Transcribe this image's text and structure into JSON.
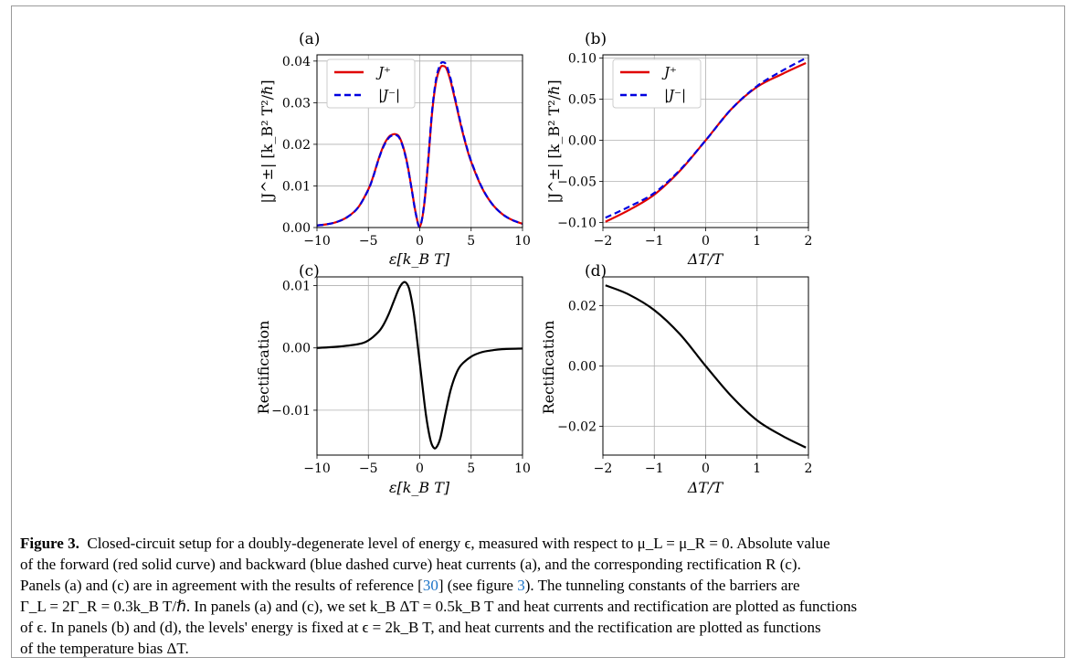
{
  "chart_data": [
    {
      "panel": "(a)",
      "type": "line",
      "xlabel": "ε[k_B T]",
      "ylabel": "|J^±|  [k_B² T²/ℏ]",
      "xlim": [
        -10,
        10
      ],
      "ylim": [
        0,
        0.0415
      ],
      "xticks": [
        -10,
        -5,
        0,
        5,
        10
      ],
      "xtick_labels": [
        "−10",
        "−5",
        "0",
        "5",
        "10"
      ],
      "yticks": [
        0,
        0.01,
        0.02,
        0.03,
        0.04
      ],
      "ytick_labels": [
        "0.00",
        "0.01",
        "0.02",
        "0.03",
        "0.04"
      ],
      "grid": true,
      "legend": "top-left",
      "series": [
        {
          "name": "J⁺",
          "color": "#e00000",
          "style": "solid",
          "x": [
            -10,
            -9,
            -8,
            -7,
            -6,
            -5,
            -4.5,
            -4,
            -3.5,
            -3,
            -2.6,
            -2.3,
            -2,
            -1.6,
            -1.2,
            -0.8,
            -0.4,
            0,
            0.4,
            0.8,
            1.2,
            1.6,
            2,
            2.3,
            2.6,
            3,
            3.5,
            4,
            4.5,
            5,
            6,
            7,
            8,
            9,
            10
          ],
          "y": [
            0.0005,
            0.0008,
            0.0014,
            0.0026,
            0.0048,
            0.0092,
            0.0125,
            0.0165,
            0.0198,
            0.0218,
            0.0224,
            0.0224,
            0.0218,
            0.0193,
            0.0152,
            0.0095,
            0.0036,
            0.0002,
            0.0048,
            0.0152,
            0.0275,
            0.0352,
            0.0384,
            0.0388,
            0.0382,
            0.0352,
            0.03,
            0.0246,
            0.0198,
            0.0158,
            0.0098,
            0.0058,
            0.0033,
            0.0018,
            0.0009
          ]
        },
        {
          "name": "|J⁻|",
          "color": "#0000e0",
          "style": "dashed",
          "x": [
            -10,
            -9,
            -8,
            -7,
            -6,
            -5,
            -4.5,
            -4,
            -3.5,
            -3,
            -2.6,
            -2.3,
            -2,
            -1.6,
            -1.2,
            -0.8,
            -0.4,
            0,
            0.4,
            0.8,
            1.2,
            1.6,
            2,
            2.3,
            2.6,
            3,
            3.5,
            4,
            4.5,
            5,
            6,
            7,
            8,
            9,
            10
          ],
          "y": [
            0.0005,
            0.0008,
            0.0014,
            0.0026,
            0.0048,
            0.0091,
            0.0124,
            0.0164,
            0.0196,
            0.0216,
            0.0222,
            0.0222,
            0.0216,
            0.0191,
            0.015,
            0.0094,
            0.0035,
            0.0002,
            0.005,
            0.0156,
            0.028,
            0.0358,
            0.0392,
            0.0397,
            0.039,
            0.0358,
            0.0304,
            0.0249,
            0.02,
            0.016,
            0.0099,
            0.0058,
            0.0033,
            0.0018,
            0.0009
          ]
        }
      ]
    },
    {
      "panel": "(b)",
      "type": "line",
      "xlabel": "ΔT/T",
      "ylabel": "|J^±|  [k_B² T²/ℏ]",
      "xlim": [
        -2,
        2
      ],
      "ylim": [
        -0.106,
        0.104
      ],
      "xticks": [
        -2,
        -1,
        0,
        1,
        2
      ],
      "xtick_labels": [
        "−2",
        "−1",
        "0",
        "1",
        "2"
      ],
      "yticks": [
        -0.1,
        -0.05,
        0,
        0.05,
        0.1
      ],
      "ytick_labels": [
        "−0.10",
        "−0.05",
        "0.00",
        "0.05",
        "0.10"
      ],
      "grid": true,
      "legend": "top-left",
      "series": [
        {
          "name": "J⁺",
          "color": "#e00000",
          "style": "solid",
          "x": [
            -1.95,
            -1.5,
            -1,
            -0.5,
            0,
            0.5,
            1,
            1.5,
            1.95
          ],
          "y": [
            -0.099,
            -0.085,
            -0.066,
            -0.037,
            0,
            0.038,
            0.065,
            0.081,
            0.094
          ]
        },
        {
          "name": "|J⁻|",
          "color": "#0000e0",
          "style": "dashed",
          "x": [
            -1.95,
            -1.5,
            -1,
            -0.5,
            0,
            0.5,
            1,
            1.5,
            1.95
          ],
          "y": [
            -0.094,
            -0.081,
            -0.064,
            -0.036,
            0,
            0.038,
            0.066,
            0.085,
            0.1
          ]
        }
      ]
    },
    {
      "panel": "(c)",
      "type": "line",
      "xlabel": "ε[k_B T]",
      "ylabel": "Rectification",
      "xlim": [
        -10,
        10
      ],
      "ylim": [
        -0.0172,
        0.0114
      ],
      "xticks": [
        -10,
        -5,
        0,
        5,
        10
      ],
      "xtick_labels": [
        "−10",
        "−5",
        "0",
        "5",
        "10"
      ],
      "yticks": [
        -0.01,
        0,
        0.01
      ],
      "ytick_labels": [
        "−0.01",
        "0.00",
        "0.01"
      ],
      "grid": true,
      "series": [
        {
          "name": "",
          "color": "#000000",
          "style": "solid",
          "x": [
            -10,
            -8,
            -6,
            -5,
            -4,
            -3.5,
            -3,
            -2.5,
            -2,
            -1.6,
            -1.3,
            -1,
            -0.6,
            -0.2,
            0.2,
            0.6,
            1,
            1.3,
            1.6,
            2,
            2.5,
            3,
            3.5,
            4,
            5,
            6,
            7,
            8,
            10
          ],
          "y": [
            0.0,
            0.0002,
            0.0006,
            0.0012,
            0.0026,
            0.0038,
            0.0055,
            0.0076,
            0.0096,
            0.0105,
            0.0104,
            0.0093,
            0.0058,
            0.0005,
            -0.0052,
            -0.0107,
            -0.0145,
            -0.0159,
            -0.016,
            -0.0145,
            -0.0105,
            -0.0068,
            -0.0043,
            -0.0028,
            -0.0014,
            -0.0007,
            -0.0004,
            -0.0002,
            -0.0001
          ]
        }
      ]
    },
    {
      "panel": "(d)",
      "type": "line",
      "xlabel": "ΔT/T",
      "ylabel": "Rectification",
      "xlim": [
        -2,
        2
      ],
      "ylim": [
        -0.0295,
        0.0295
      ],
      "xticks": [
        -2,
        -1,
        0,
        1,
        2
      ],
      "xtick_labels": [
        "−2",
        "−1",
        "0",
        "1",
        "2"
      ],
      "yticks": [
        -0.02,
        0,
        0.02
      ],
      "ytick_labels": [
        "−0.02",
        "0.00",
        "0.02"
      ],
      "grid": true,
      "series": [
        {
          "name": "",
          "color": "#000000",
          "style": "solid",
          "x": [
            -1.95,
            -1.5,
            -1,
            -0.5,
            0,
            0.5,
            1,
            1.5,
            1.95
          ],
          "y": [
            0.0267,
            0.0237,
            0.0185,
            0.0105,
            0.0,
            -0.01,
            -0.018,
            -0.0232,
            -0.027
          ]
        }
      ]
    }
  ],
  "caption": {
    "label": "Figure 3.",
    "line1": "Closed-circuit setup for a doubly-degenerate level of energy ϵ, measured with respect to μ_L = μ_R = 0. Absolute value",
    "line2": "of the forward (red solid curve) and backward (blue dashed curve) heat currents (a), and the corresponding rectification R (c).",
    "line3_pre": "Panels (a) and (c) are in agreement with the results of reference [",
    "ref1": "30",
    "line3_mid": "] (see figure ",
    "ref2": "3",
    "line3_post": "). The tunneling constants of the barriers are",
    "line4": "Γ_L = 2Γ_R = 0.3k_B T/ℏ. In panels (a) and (c), we set k_B ΔT = 0.5k_B T and heat currents and rectification are plotted as functions",
    "line5": "of ϵ. In panels (b) and (d), the levels' energy is fixed at ϵ = 2k_B T, and heat currents and the rectification are plotted as functions",
    "line6": "of the temperature bias ΔT."
  }
}
